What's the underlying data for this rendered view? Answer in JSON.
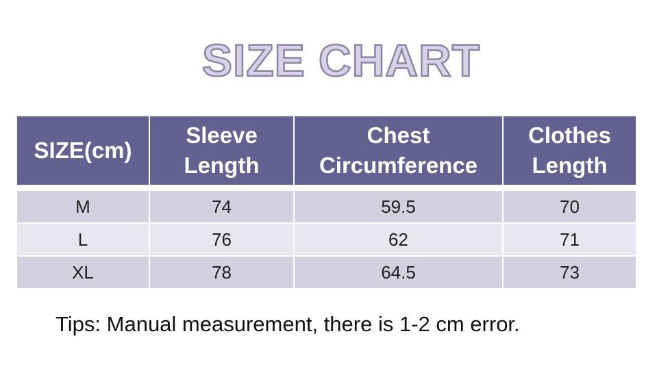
{
  "title": "SIZE CHART",
  "table": {
    "headers": [
      {
        "line1": "SIZE(cm)",
        "line2": ""
      },
      {
        "line1": "Sleeve",
        "line2": "Length"
      },
      {
        "line1": "Chest",
        "line2": "Circumference"
      },
      {
        "line1": "Clothes",
        "line2": "Length"
      }
    ],
    "rows": [
      {
        "size": "M",
        "sleeve": "74",
        "chest": "59.5",
        "length": "70"
      },
      {
        "size": "L",
        "sleeve": "76",
        "chest": "62",
        "length": "71"
      },
      {
        "size": "XL",
        "sleeve": "78",
        "chest": "64.5",
        "length": "73"
      }
    ]
  },
  "tips": "Tips: Manual measurement, there is 1-2 cm error.",
  "colors": {
    "header_bg": "#63618f",
    "row_dark": "#d3d1e0",
    "row_light": "#e8e7ef",
    "title_fill": "#d8d2e4",
    "title_stroke": "#8e84a8"
  }
}
